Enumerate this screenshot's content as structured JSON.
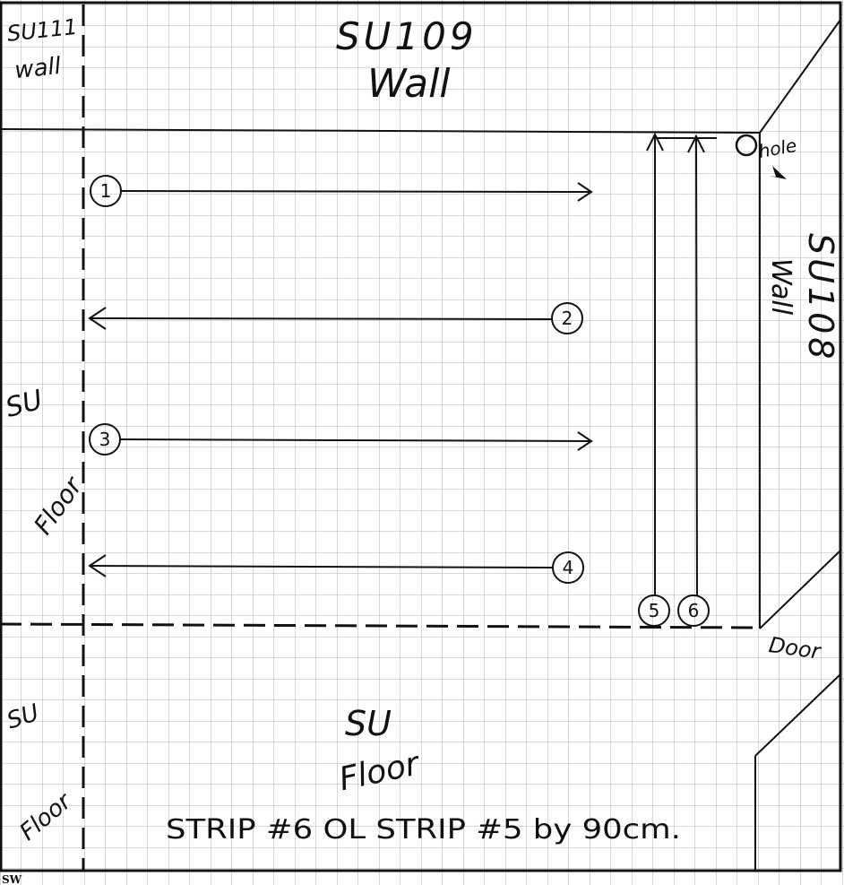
{
  "labels": {
    "corner_room": [
      "SU111",
      "wall"
    ],
    "top_wall": [
      "SU109",
      "Wall"
    ],
    "right_wall": [
      "SU108",
      "Wall"
    ],
    "left_floor_mid": [
      "SU",
      "Floor"
    ],
    "left_floor_bottom": [
      "SU",
      "Floor"
    ],
    "bottom_floor": [
      "SU",
      "Floor"
    ],
    "hole": "hole",
    "door": "Door",
    "caption": "STRIP #6 OL STRIP #5 by 90cm.",
    "corner_mark": "SW"
  },
  "strips": [
    "1",
    "2",
    "3",
    "4",
    "5",
    "6"
  ]
}
